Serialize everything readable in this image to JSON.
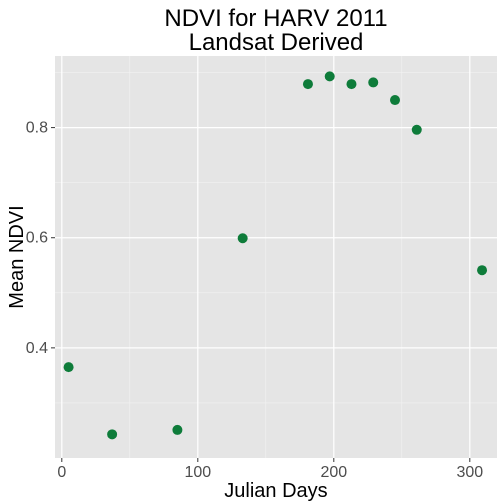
{
  "chart_data": {
    "type": "scatter",
    "title": "NDVI for HARV 2011",
    "subtitle": "Landsat Derived",
    "xlabel": "Julian Days",
    "ylabel": "Mean NDVI",
    "xlim": [
      -5,
      320
    ],
    "ylim": [
      0.2,
      0.93
    ],
    "xticks": [
      0,
      100,
      200,
      300
    ],
    "xtick_labels": [
      "0",
      "100",
      "200",
      "300"
    ],
    "yticks": [
      0.4,
      0.6,
      0.8
    ],
    "ytick_labels": [
      "0.4",
      "0.6",
      "0.8"
    ],
    "grid": true,
    "point_color": "#0e7c3a",
    "panel_background": "#e5e5e5",
    "x": [
      5,
      37,
      85,
      133,
      181,
      197,
      213,
      229,
      245,
      261,
      309
    ],
    "y": [
      0.365,
      0.243,
      0.251,
      0.599,
      0.879,
      0.893,
      0.879,
      0.882,
      0.85,
      0.796,
      0.541
    ]
  }
}
